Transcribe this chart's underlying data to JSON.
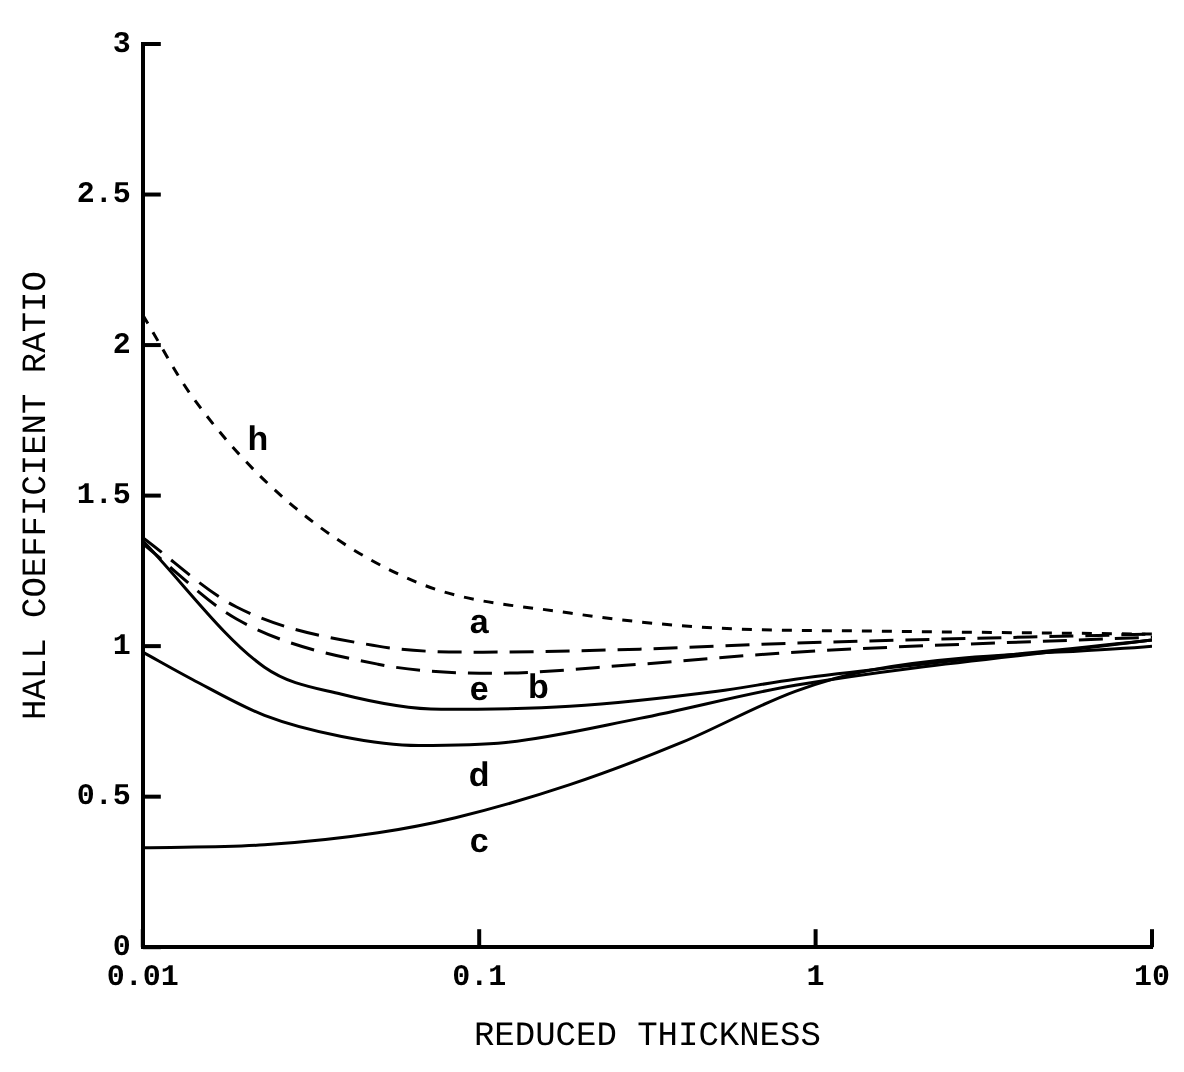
{
  "chart_data": {
    "type": "line",
    "xlabel": "REDUCED THICKNESS",
    "ylabel": "HALL COEFFICIENT RATIO",
    "log": "x",
    "grid": false,
    "legend": false,
    "marker": "none",
    "xlim": [
      0.01,
      10
    ],
    "xticks": [
      0.01,
      0.1,
      1,
      10
    ],
    "ylim": [
      0,
      3
    ],
    "yticks": [
      0,
      0.5,
      1,
      1.5,
      2,
      2.5,
      3
    ],
    "series": [
      {
        "color": "#000000",
        "line_style": "dotted",
        "x": [
          0.01,
          0.014,
          0.027,
          0.066,
          0.186,
          0.51,
          1.5,
          10
        ],
        "values": [
          2.1,
          1.83,
          1.48,
          1.21,
          1.11,
          1.06,
          1.05,
          1.04
        ]
      },
      {
        "color": "#000000",
        "line_style": "dashed",
        "x": [
          0.01,
          0.019,
          0.05,
          0.1,
          0.3,
          0.87,
          10
        ],
        "values": [
          1.36,
          1.13,
          1.0,
          0.98,
          0.99,
          1.01,
          1.04
        ]
      },
      {
        "color": "#000000",
        "line_style": "dashed",
        "x": [
          0.01,
          0.019,
          0.05,
          0.11,
          0.3,
          0.87,
          10
        ],
        "values": [
          1.34,
          1.09,
          0.94,
          0.91,
          0.94,
          0.98,
          1.03
        ]
      },
      {
        "color": "#000000",
        "line_style": "solid",
        "x": [
          0.01,
          0.023,
          0.039,
          0.077,
          0.186,
          0.51,
          0.87,
          10
        ],
        "values": [
          1.35,
          0.93,
          0.84,
          0.79,
          0.8,
          0.85,
          0.89,
          1.02
        ]
      },
      {
        "color": "#000000",
        "line_style": "solid",
        "x": [
          0.01,
          0.014,
          0.023,
          0.039,
          0.066,
          0.12,
          0.3,
          0.87,
          10
        ],
        "values": [
          0.98,
          0.89,
          0.77,
          0.7,
          0.67,
          0.68,
          0.76,
          0.87,
          1.02
        ]
      },
      {
        "color": "#000000",
        "line_style": "solid",
        "x": [
          0.01,
          0.023,
          0.05,
          0.085,
          0.186,
          0.4,
          0.87,
          1.45,
          10
        ],
        "values": [
          0.33,
          0.34,
          0.38,
          0.43,
          0.54,
          0.68,
          0.85,
          0.92,
          1.0
        ]
      }
    ],
    "annotations": [
      {
        "text": "h",
        "x": 0.022,
        "y": 1.59
      },
      {
        "text": "a",
        "x": 0.1,
        "y": 0.98
      },
      {
        "text": "b",
        "x": 0.15,
        "y": 0.92
      },
      {
        "text": "e",
        "x": 0.1,
        "y": 0.79
      },
      {
        "text": "d",
        "x": 0.1,
        "y": 0.68
      },
      {
        "text": "c",
        "x": 0.1,
        "y": 0.44
      }
    ]
  }
}
